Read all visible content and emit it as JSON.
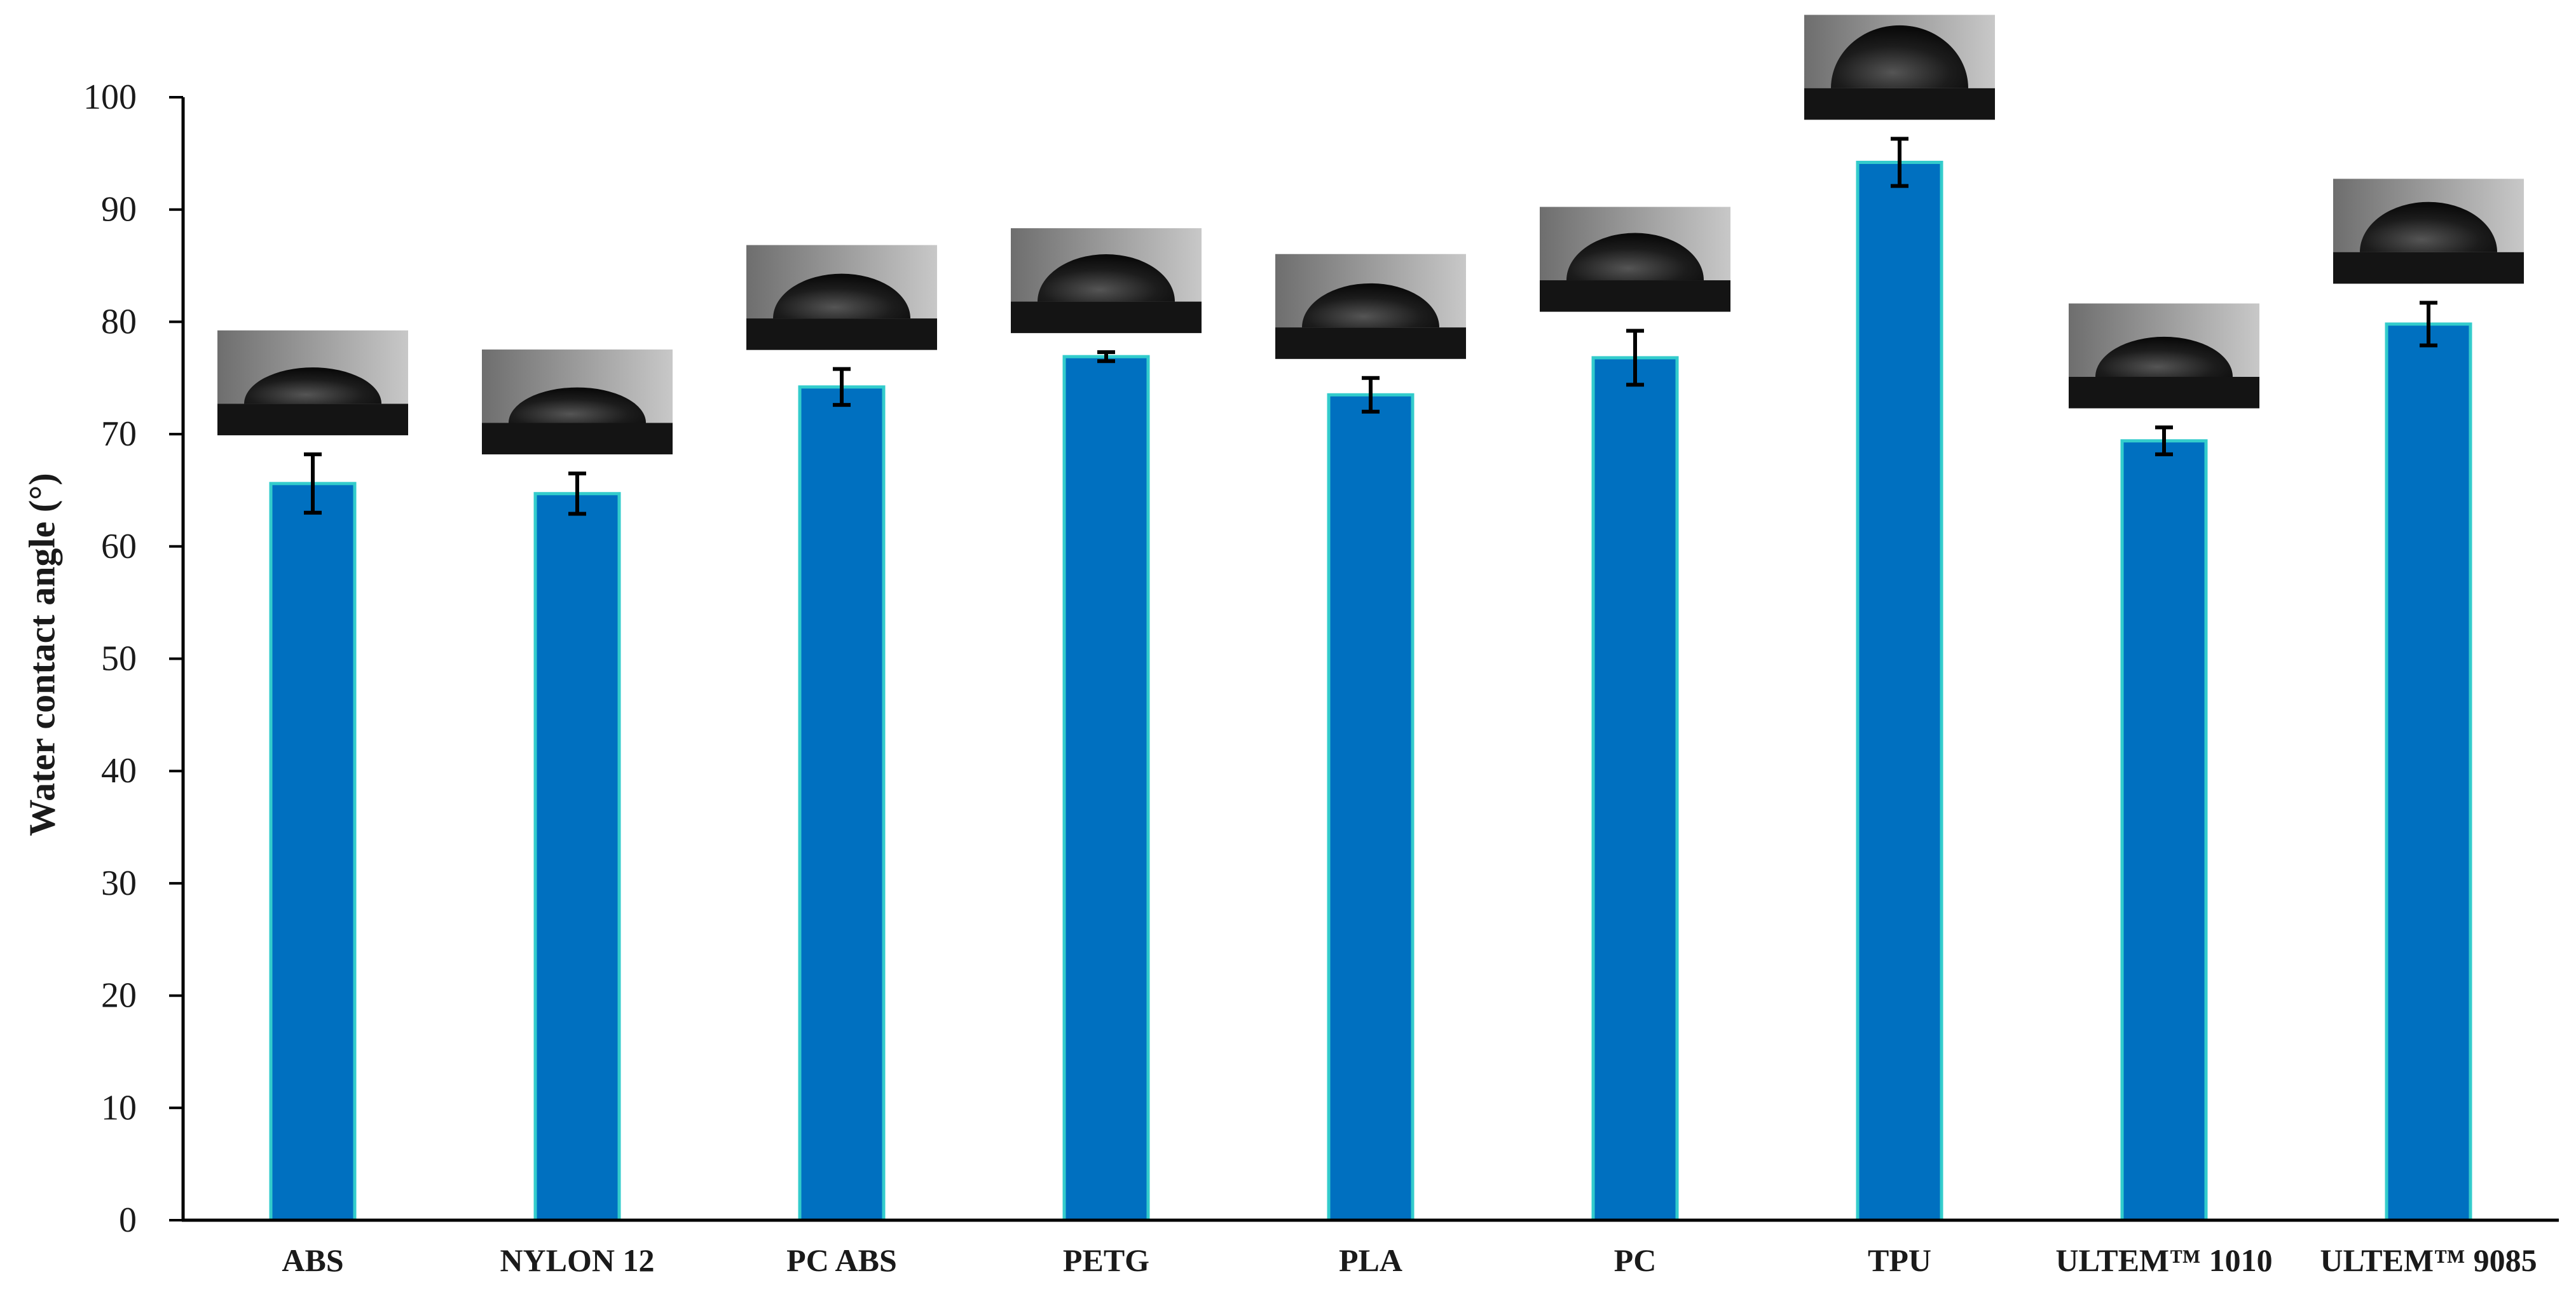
{
  "chart_data": {
    "type": "bar",
    "ylabel": "Water contact angle (°)",
    "xlabel": "",
    "ylim": [
      0,
      100
    ],
    "yticks": [
      0,
      10,
      20,
      30,
      40,
      50,
      60,
      70,
      80,
      90,
      100
    ],
    "grid": false,
    "categories": [
      "ABS",
      "NYLON 12",
      "PC ABS",
      "PETG",
      "PLA",
      "PC",
      "TPU",
      "ULTEM™ 1010",
      "ULTEM™ 9085"
    ],
    "values": [
      65.6,
      64.7,
      74.2,
      76.9,
      73.5,
      76.8,
      94.2,
      69.4,
      79.8
    ],
    "error": [
      2.6,
      1.8,
      1.6,
      0.4,
      1.5,
      2.4,
      2.1,
      1.2,
      1.9
    ],
    "bar_color": "#0070C0",
    "bar_edge_color": "#33CCCC",
    "inset_images": "water droplet photographs above each bar"
  }
}
